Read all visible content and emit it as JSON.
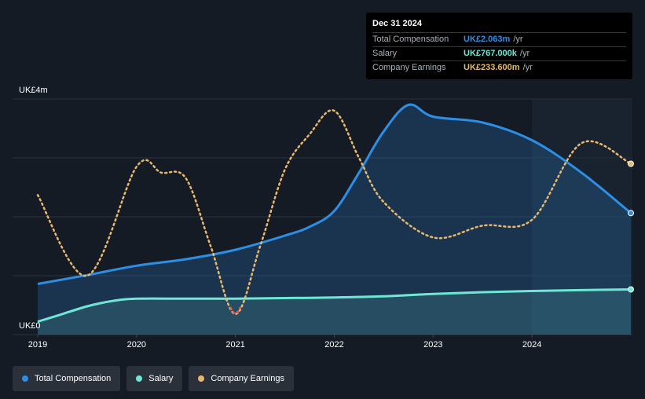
{
  "tooltip": {
    "date": "Dec 31 2024",
    "rows": [
      {
        "label": "Total Compensation",
        "value": "UK£2.063m",
        "unit": "/yr"
      },
      {
        "label": "Salary",
        "value": "UK£767.000k",
        "unit": "/yr"
      },
      {
        "label": "Company Earnings",
        "value": "UK£233.600m",
        "unit": "/yr"
      }
    ]
  },
  "legend": [
    {
      "label": "Total Compensation"
    },
    {
      "label": "Salary"
    },
    {
      "label": "Company Earnings"
    }
  ],
  "colors": {
    "total": "#2d8ee6",
    "salary": "#6ee7d4",
    "earnings": "#e8b86d",
    "earnings_negative": "#e05a5a"
  },
  "chart_data": {
    "type": "line",
    "title": "",
    "y_axis": {
      "top_label": "UK£4m",
      "bottom_label": "UK£0",
      "range": [
        0,
        4
      ]
    },
    "x_axis": {
      "range": [
        2019.0,
        2025.0
      ],
      "ticks": [
        "2019",
        "2020",
        "2021",
        "2022",
        "2023",
        "2024"
      ]
    },
    "forecast_start": 2024.0,
    "series": [
      {
        "name": "Total Compensation",
        "unit": "UK£m",
        "points": [
          [
            2019.0,
            0.86
          ],
          [
            2019.5,
            1.01
          ],
          [
            2020.0,
            1.17
          ],
          [
            2020.5,
            1.28
          ],
          [
            2021.0,
            1.44
          ],
          [
            2021.5,
            1.68
          ],
          [
            2021.75,
            1.83
          ],
          [
            2022.0,
            2.1
          ],
          [
            2022.25,
            2.75
          ],
          [
            2022.5,
            3.45
          ],
          [
            2022.75,
            3.9
          ],
          [
            2023.0,
            3.7
          ],
          [
            2023.5,
            3.6
          ],
          [
            2024.0,
            3.3
          ],
          [
            2024.5,
            2.75
          ],
          [
            2025.0,
            2.063
          ]
        ]
      },
      {
        "name": "Salary",
        "unit": "UK£m",
        "points": [
          [
            2019.0,
            0.22
          ],
          [
            2019.25,
            0.35
          ],
          [
            2019.5,
            0.48
          ],
          [
            2019.75,
            0.57
          ],
          [
            2020.0,
            0.61
          ],
          [
            2020.5,
            0.61
          ],
          [
            2021.0,
            0.61
          ],
          [
            2021.5,
            0.62
          ],
          [
            2022.0,
            0.63
          ],
          [
            2022.5,
            0.65
          ],
          [
            2023.0,
            0.69
          ],
          [
            2023.5,
            0.72
          ],
          [
            2024.0,
            0.74
          ],
          [
            2024.5,
            0.755
          ],
          [
            2025.0,
            0.767
          ]
        ]
      },
      {
        "name": "Company Earnings",
        "unit": "relative scale",
        "points": [
          [
            2019.0,
            2.37
          ],
          [
            2019.5,
            1.0
          ],
          [
            2020.0,
            2.85
          ],
          [
            2020.25,
            2.75
          ],
          [
            2020.5,
            2.65
          ],
          [
            2020.75,
            1.5
          ],
          [
            2021.0,
            0.35
          ],
          [
            2021.25,
            1.5
          ],
          [
            2021.5,
            2.8
          ],
          [
            2021.75,
            3.4
          ],
          [
            2022.0,
            3.8
          ],
          [
            2022.25,
            3.0
          ],
          [
            2022.5,
            2.25
          ],
          [
            2023.0,
            1.65
          ],
          [
            2023.5,
            1.85
          ],
          [
            2024.0,
            1.95
          ],
          [
            2024.5,
            3.25
          ],
          [
            2025.0,
            2.9
          ]
        ]
      }
    ]
  }
}
